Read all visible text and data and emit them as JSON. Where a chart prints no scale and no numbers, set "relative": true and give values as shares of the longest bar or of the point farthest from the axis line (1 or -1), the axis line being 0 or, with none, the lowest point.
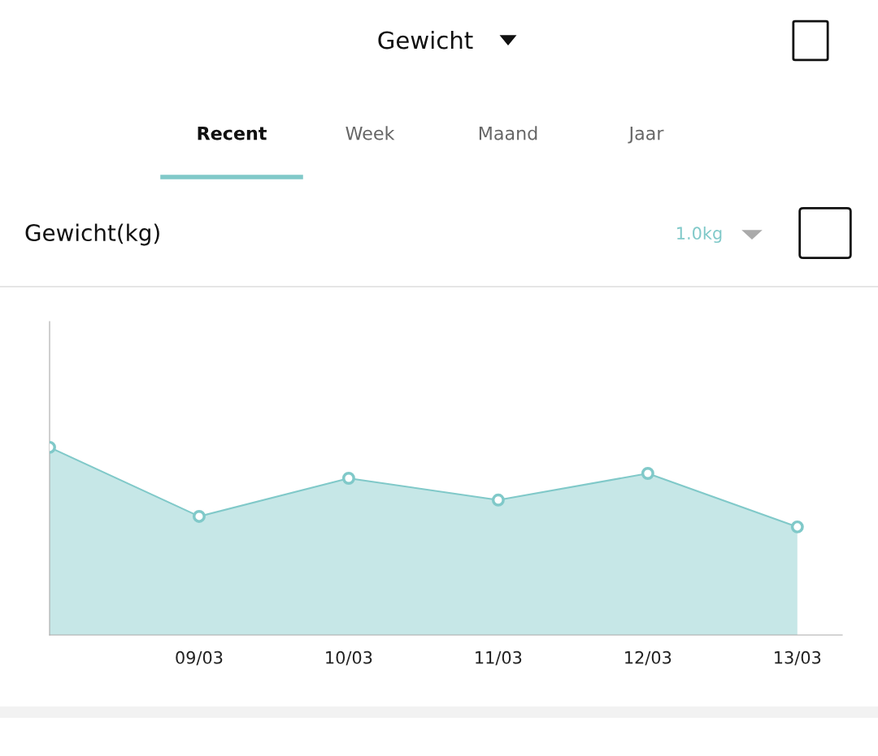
{
  "chart_data": {
    "type": "area",
    "title": "Gewicht",
    "subtitle": "Gewicht(kg)",
    "annotations": [
      "Recent",
      "Week",
      "Maand",
      "Jaar",
      "1.0kg"
    ],
    "categories": [
      null,
      "09/03",
      "10/03",
      "11/03",
      "12/03",
      "13/03"
    ],
    "relative": true,
    "series": [
      {
        "color": "#80c9c9",
        "values": [
          1,
          0.632,
          0.835,
          0.719,
          0.861,
          0.576
        ]
      }
    ],
    "marker": "circle",
    "grid": false,
    "legend": false
  }
}
